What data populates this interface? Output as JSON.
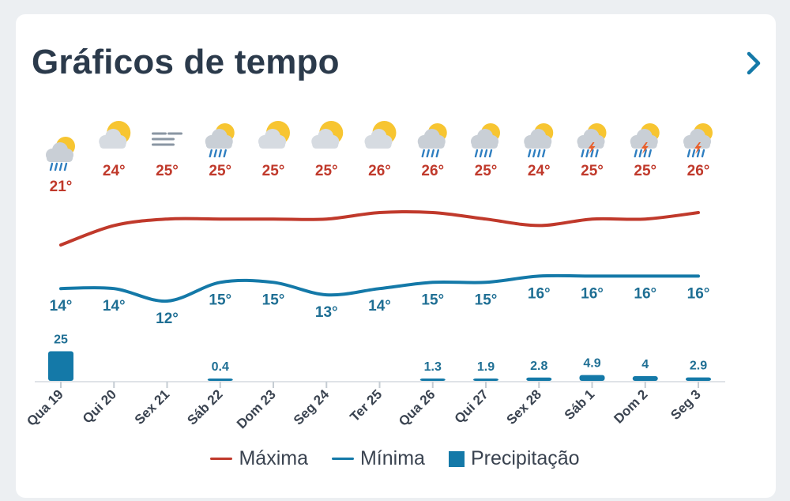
{
  "header": {
    "title": "Gráficos de tempo",
    "next_icon": "chevron-right-icon"
  },
  "colors": {
    "max": "#c0392b",
    "min": "#1479a8",
    "precip": "#1479a8",
    "min_label": "#1f6f94"
  },
  "legend": {
    "max_label": "Máxima",
    "min_label": "Mínima",
    "precip_label": "Precipitação"
  },
  "chart_data": {
    "type": "line",
    "categories": [
      "Qua 19",
      "Qui 20",
      "Sex 21",
      "Sáb 22",
      "Dom 23",
      "Seg 24",
      "Ter 25",
      "Qua 26",
      "Qui 27",
      "Sex 28",
      "Sáb 1",
      "Dom 2",
      "Seg 3"
    ],
    "icons": [
      "rain-sun-icon",
      "sun-cloud-icon",
      "fog-icon",
      "rain-sun-icon",
      "sun-cloud-icon",
      "sun-cloud-icon",
      "sun-cloud-icon",
      "rain-sun-icon",
      "rain-sun-icon",
      "rain-sun-icon",
      "storm-sun-icon",
      "storm-sun-icon",
      "storm-sun-icon"
    ],
    "series": [
      {
        "name": "Máxima",
        "values": [
          21,
          24,
          25,
          25,
          25,
          25,
          26,
          26,
          25,
          24,
          25,
          25,
          26
        ],
        "labels": [
          "21°",
          "24°",
          "25°",
          "25°",
          "25°",
          "25°",
          "26°",
          "26°",
          "25°",
          "24°",
          "25°",
          "25°",
          "26°"
        ]
      },
      {
        "name": "Mínima",
        "values": [
          14,
          14,
          12,
          15,
          15,
          13,
          14,
          15,
          15,
          16,
          16,
          16,
          16
        ],
        "labels": [
          "14°",
          "14°",
          "12°",
          "15°",
          "15°",
          "13°",
          "14°",
          "15°",
          "15°",
          "16°",
          "16°",
          "16°",
          "16°"
        ]
      },
      {
        "name": "Precipitação",
        "values": [
          25,
          0,
          0,
          0.4,
          0,
          0,
          0,
          1.3,
          1.9,
          2.8,
          4.9,
          4,
          2.9
        ],
        "labels": [
          "25",
          "",
          "",
          "0.4",
          "",
          "",
          "",
          "1.3",
          "1.9",
          "2.8",
          "4.9",
          "4",
          "2.9"
        ]
      }
    ],
    "legend_position": "bottom",
    "grid": false
  }
}
